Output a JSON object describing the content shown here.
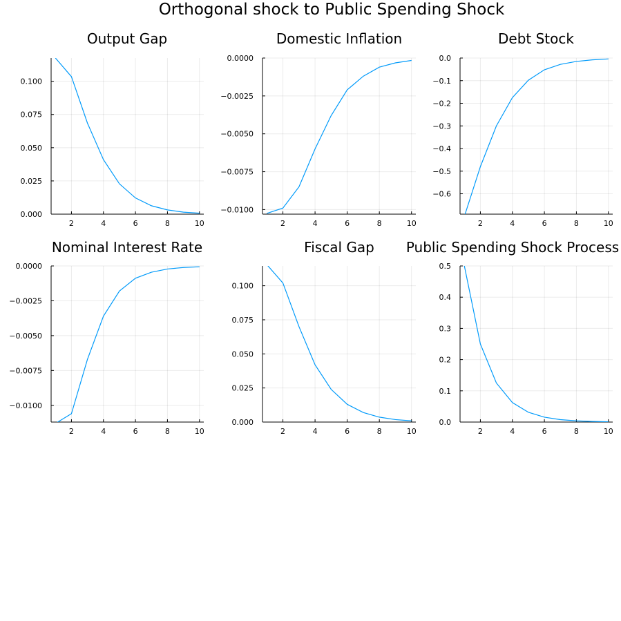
{
  "figure": {
    "title": "Orthogonal shock to Public Spending Shock",
    "line_color": "#009AFA"
  },
  "chart_data": [
    {
      "type": "line",
      "title": "Output Gap",
      "x": [
        1,
        2,
        3,
        4,
        5,
        6,
        7,
        8,
        9,
        10
      ],
      "values": [
        0.1175,
        0.1035,
        0.0685,
        0.041,
        0.0228,
        0.0122,
        0.0063,
        0.0032,
        0.0015,
        0.0007
      ],
      "xlim": [
        0.73,
        10.27
      ],
      "ylim": [
        0,
        0.1175
      ],
      "xticks": [
        2,
        4,
        6,
        8,
        10
      ],
      "yticks": [
        0,
        0.025,
        0.05,
        0.075,
        0.1
      ],
      "ytick_labels": [
        "0.000",
        "0.025",
        "0.050",
        "0.075",
        "0.100"
      ],
      "xtick_labels": [
        "2",
        "4",
        "6",
        "8",
        "10"
      ],
      "grid": true
    },
    {
      "type": "line",
      "title": "Domestic Inflation",
      "x": [
        1,
        2,
        3,
        4,
        5,
        6,
        7,
        8,
        9,
        10
      ],
      "values": [
        -0.01025,
        -0.0099,
        -0.0085,
        -0.006,
        -0.0038,
        -0.0021,
        -0.0012,
        -0.0006,
        -0.00032,
        -0.00016
      ],
      "xlim": [
        0.73,
        10.27
      ],
      "ylim": [
        -0.0103,
        0
      ],
      "xticks": [
        2,
        4,
        6,
        8,
        10
      ],
      "yticks": [
        -0.01,
        -0.0075,
        -0.005,
        -0.0025,
        0
      ],
      "ytick_labels": [
        "−0.0100",
        "−0.0075",
        "−0.0050",
        "−0.0025",
        "0.0000"
      ],
      "xtick_labels": [
        "2",
        "4",
        "6",
        "8",
        "10"
      ],
      "grid": true
    },
    {
      "type": "line",
      "title": "Debt Stock",
      "x": [
        1,
        2,
        3,
        4,
        5,
        6,
        7,
        8,
        9,
        10
      ],
      "values": [
        -0.7,
        -0.48,
        -0.3,
        -0.175,
        -0.098,
        -0.052,
        -0.028,
        -0.015,
        -0.008,
        -0.004
      ],
      "xlim": [
        0.73,
        10.27
      ],
      "ylim": [
        -0.69,
        0
      ],
      "xticks": [
        2,
        4,
        6,
        8,
        10
      ],
      "yticks": [
        -0.6,
        -0.5,
        -0.4,
        -0.3,
        -0.2,
        -0.1,
        0
      ],
      "ytick_labels": [
        "−0.6",
        "−0.5",
        "−0.4",
        "−0.3",
        "−0.2",
        "−0.1",
        "0.0"
      ],
      "xtick_labels": [
        "2",
        "4",
        "6",
        "8",
        "10"
      ],
      "grid": true
    },
    {
      "type": "line",
      "title": "Nominal Interest Rate",
      "x": [
        1,
        2,
        3,
        4,
        5,
        6,
        7,
        8,
        9,
        10
      ],
      "values": [
        -0.0113,
        -0.0106,
        -0.0067,
        -0.0036,
        -0.0018,
        -0.00088,
        -0.00045,
        -0.00022,
        -0.00011,
        -6e-05
      ],
      "xlim": [
        0.73,
        10.27
      ],
      "ylim": [
        -0.0112,
        0
      ],
      "xticks": [
        2,
        4,
        6,
        8,
        10
      ],
      "yticks": [
        -0.01,
        -0.0075,
        -0.005,
        -0.0025,
        0
      ],
      "ytick_labels": [
        "−0.0100",
        "−0.0075",
        "−0.0050",
        "−0.0025",
        "0.0000"
      ],
      "xtick_labels": [
        "2",
        "4",
        "6",
        "8",
        "10"
      ],
      "grid": true
    },
    {
      "type": "line",
      "title": "Fiscal Gap",
      "x": [
        1,
        2,
        3,
        4,
        5,
        6,
        7,
        8,
        9,
        10
      ],
      "values": [
        0.1155,
        0.102,
        0.07,
        0.042,
        0.024,
        0.013,
        0.007,
        0.0036,
        0.0018,
        0.0009
      ],
      "xlim": [
        0.73,
        10.27
      ],
      "ylim": [
        0,
        0.1145
      ],
      "xticks": [
        2,
        4,
        6,
        8,
        10
      ],
      "yticks": [
        0,
        0.025,
        0.05,
        0.075,
        0.1
      ],
      "ytick_labels": [
        "0.000",
        "0.025",
        "0.050",
        "0.075",
        "0.100"
      ],
      "xtick_labels": [
        "2",
        "4",
        "6",
        "8",
        "10"
      ],
      "grid": true
    },
    {
      "type": "line",
      "title": "Public Spending Shock Process",
      "x": [
        1,
        2,
        3,
        4,
        5,
        6,
        7,
        8,
        9,
        10
      ],
      "values": [
        0.5,
        0.25,
        0.125,
        0.0625,
        0.03125,
        0.0156,
        0.0078,
        0.0039,
        0.002,
        0.001
      ],
      "xlim": [
        0.73,
        10.27
      ],
      "ylim": [
        0,
        0.5
      ],
      "xticks": [
        2,
        4,
        6,
        8,
        10
      ],
      "yticks": [
        0,
        0.1,
        0.2,
        0.3,
        0.4,
        0.5
      ],
      "ytick_labels": [
        "0.0",
        "0.1",
        "0.2",
        "0.3",
        "0.4",
        "0.5"
      ],
      "xtick_labels": [
        "2",
        "4",
        "6",
        "8",
        "10"
      ],
      "grid": true
    }
  ]
}
